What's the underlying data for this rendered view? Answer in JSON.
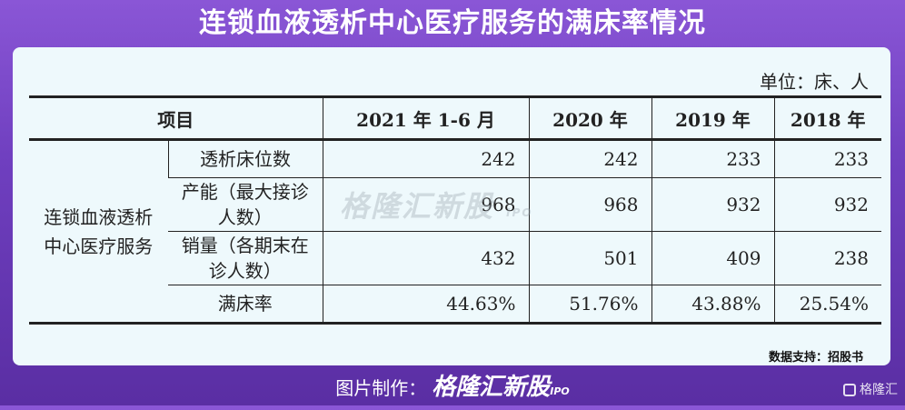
{
  "title": "连锁血液透析中心医疗服务的满床率情况",
  "unit": "单位：床、人",
  "table": {
    "headers": [
      "项目",
      "2021 年 1-6 月",
      "2020 年",
      "2019 年",
      "2018 年"
    ],
    "group_label": "连锁血液透析中心医疗服务",
    "rows": [
      {
        "item": "透析床位数",
        "values": [
          "242",
          "242",
          "233",
          "233"
        ]
      },
      {
        "item": "产能（最大接诊人数）",
        "values": [
          "968",
          "968",
          "932",
          "932"
        ]
      },
      {
        "item": "销量（各期末在诊人数）",
        "values": [
          "432",
          "501",
          "409",
          "238"
        ]
      },
      {
        "item": "满床率",
        "values": [
          "44.63%",
          "51.76%",
          "43.88%",
          "25.54%"
        ]
      }
    ]
  },
  "watermark": {
    "text": "格隆汇新股",
    "sub": "IPO"
  },
  "source": "数据支持：招股书",
  "footer": {
    "label": "图片制作：",
    "brand": "格隆汇新股",
    "brand_sub": "IPO"
  },
  "corner_logo": "格隆汇",
  "colors": {
    "background": "#7a48c9",
    "card": "#eef9fc"
  }
}
